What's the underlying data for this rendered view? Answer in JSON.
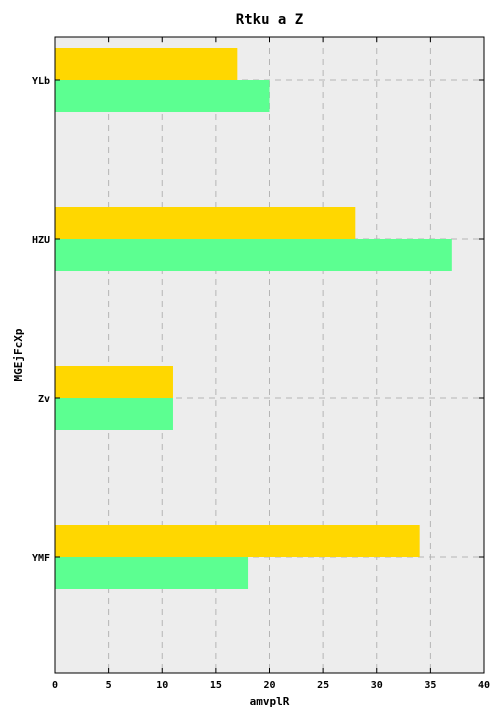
{
  "chart_data": {
    "type": "bar",
    "orientation": "horizontal",
    "title": "Rtku a Z",
    "xlabel": "amvplR",
    "ylabel": "MGEjFcXp",
    "categories": [
      "YLb",
      "HZU",
      "Zv",
      "YMF"
    ],
    "series": [
      {
        "color": "#ffd700",
        "values": [
          17,
          28,
          11,
          34
        ]
      },
      {
        "color": "#5cff91",
        "values": [
          20,
          37,
          11,
          18
        ]
      }
    ],
    "xlim": [
      0,
      40
    ],
    "xticks": [
      0,
      5,
      10,
      15,
      20,
      25,
      30,
      35,
      40
    ],
    "grid": true,
    "background_color": "#ededed"
  }
}
